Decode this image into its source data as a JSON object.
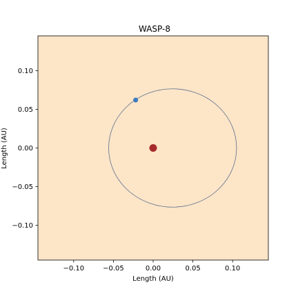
{
  "chart_data": {
    "type": "scatter",
    "title": "WASP-8",
    "xlabel": "Length (AU)",
    "ylabel": "Length (AU)",
    "xlim": [
      -0.145,
      0.145
    ],
    "ylim": [
      -0.145,
      0.145
    ],
    "xticks": [
      {
        "value": -0.1,
        "label": "−0.10"
      },
      {
        "value": -0.05,
        "label": "−0.05"
      },
      {
        "value": 0.0,
        "label": "0.00"
      },
      {
        "value": 0.05,
        "label": "0.05"
      },
      {
        "value": 0.1,
        "label": "0.10"
      }
    ],
    "yticks": [
      {
        "value": 0.1,
        "label": "0.10"
      },
      {
        "value": 0.05,
        "label": "0.05"
      },
      {
        "value": 0.0,
        "label": "0.00"
      },
      {
        "value": -0.05,
        "label": "−0.05"
      },
      {
        "value": -0.1,
        "label": "−0.10"
      }
    ],
    "grid": false,
    "background_color": "#fde5c8",
    "star": {
      "x": 0.0,
      "y": 0.0,
      "color": "#a52a2a"
    },
    "planet": {
      "x": -0.022,
      "y": 0.062,
      "color": "#3a7bbf"
    },
    "orbit": {
      "center_x": 0.0245,
      "center_y": 0.0,
      "semi_major_x": 0.0805,
      "semi_minor_y": 0.0765,
      "color": "#5b6f8a"
    }
  }
}
